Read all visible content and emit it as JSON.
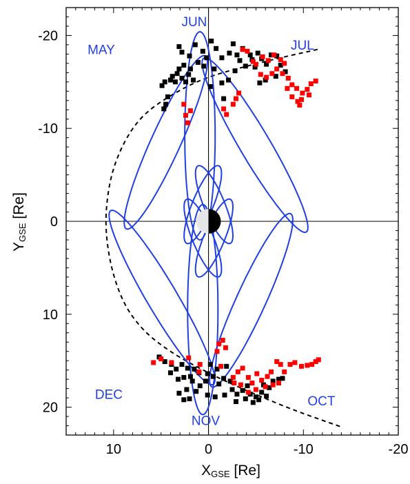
{
  "chart_data": {
    "type": "scatter",
    "title": "",
    "xlabel": {
      "main": "X",
      "sub": "GSE",
      "unit": " [Re]"
    },
    "ylabel": {
      "main": "Y",
      "sub": "GSE",
      "unit": " [Re]"
    },
    "xlim": [
      15,
      -20
    ],
    "ylim": [
      -23,
      23
    ],
    "x_reversed": true,
    "y_reversed": true,
    "x_ticks": [
      {
        "value": 10,
        "label": "10"
      },
      {
        "value": 0,
        "label": "0"
      },
      {
        "value": -10,
        "label": "-10"
      },
      {
        "value": -20,
        "label": "-20"
      }
    ],
    "y_ticks": [
      {
        "value": -20,
        "label": "-20"
      },
      {
        "value": -10,
        "label": "-10"
      },
      {
        "value": 0,
        "label": "0"
      },
      {
        "value": 10,
        "label": "10"
      },
      {
        "value": 20,
        "label": "20"
      }
    ],
    "grid": false,
    "zero_lines": true,
    "colors": {
      "black": "#000000",
      "red": "#ff0000",
      "orbit": "#1f3fe0",
      "earth_dark": "#000000",
      "earth_light": "#e6e6e6"
    },
    "magnetopause": {
      "style": "dashed",
      "points": [
        [
          -11.5,
          -18.5
        ],
        [
          -6,
          -17.2
        ],
        [
          0,
          -15.5
        ],
        [
          4,
          -13.5
        ],
        [
          7,
          -11.2
        ],
        [
          9,
          -8.2
        ],
        [
          10.3,
          -4.5
        ],
        [
          10.8,
          0
        ],
        [
          10.3,
          4.5
        ],
        [
          9,
          8.5
        ],
        [
          7,
          11.5
        ],
        [
          4,
          14
        ],
        [
          0,
          16.3
        ],
        [
          -4,
          18.2
        ],
        [
          -9,
          20.3
        ],
        [
          -14.2,
          22.2
        ]
      ]
    },
    "orbits": [
      {
        "center": [
          4.5,
          -8.5
        ],
        "semi_major": 10.2,
        "semi_minor": 1.55,
        "angle_deg": -66
      },
      {
        "center": [
          0.9,
          -9.2
        ],
        "semi_major": 11.2,
        "semi_minor": 1.6,
        "angle_deg": -90
      },
      {
        "center": [
          -4.9,
          -8.2
        ],
        "semi_major": 10.8,
        "semi_minor": 1.6,
        "angle_deg": -120
      },
      {
        "center": [
          4.9,
          8.2
        ],
        "semi_major": 10.8,
        "semi_minor": 1.6,
        "angle_deg": -120
      },
      {
        "center": [
          0.6,
          9.5
        ],
        "semi_major": 11.3,
        "semi_minor": 1.6,
        "angle_deg": -90
      },
      {
        "center": [
          -4.5,
          8.5
        ],
        "semi_major": 10.2,
        "semi_minor": 1.55,
        "angle_deg": -66
      },
      {
        "center": [
          -0.6,
          -1.8
        ],
        "semi_major": 4.5,
        "semi_minor": 1.1,
        "angle_deg": -112
      },
      {
        "center": [
          0.6,
          -1.8
        ],
        "semi_major": 4.5,
        "semi_minor": 1.1,
        "angle_deg": -68
      },
      {
        "center": [
          0.6,
          1.8
        ],
        "semi_major": 4.5,
        "semi_minor": 1.1,
        "angle_deg": -112
      },
      {
        "center": [
          -0.6,
          1.8
        ],
        "semi_major": 4.5,
        "semi_minor": 1.1,
        "angle_deg": -68
      }
    ],
    "annotations": [
      {
        "text": "JUN",
        "x": 1.5,
        "y": -21.5
      },
      {
        "text": "MAY",
        "x": 11.3,
        "y": -18.5
      },
      {
        "text": "JUL",
        "x": -9.9,
        "y": -19.0
      },
      {
        "text": "DEC",
        "x": 10.5,
        "y": 18.6
      },
      {
        "text": "NOV",
        "x": 0.3,
        "y": 21.4
      },
      {
        "text": "OCT",
        "x": -11.9,
        "y": 19.3
      }
    ],
    "series": [
      {
        "color": "black",
        "points": [
          [
            4.7,
            -12.1
          ],
          [
            4.5,
            -12.6
          ],
          [
            4.3,
            -13.4
          ],
          [
            4.9,
            -14.6
          ],
          [
            4.6,
            -15.0
          ],
          [
            4.0,
            -15.2
          ],
          [
            3.5,
            -15.0
          ],
          [
            3.8,
            -15.6
          ],
          [
            3.3,
            -15.9
          ],
          [
            2.8,
            -15.4
          ],
          [
            2.4,
            -15.0
          ],
          [
            2.1,
            -15.8
          ],
          [
            1.6,
            -15.2
          ],
          [
            1.9,
            -16.4
          ],
          [
            2.6,
            -16.8
          ],
          [
            3.1,
            -16.4
          ],
          [
            2.0,
            -17.8
          ],
          [
            2.8,
            -18.2
          ],
          [
            3.1,
            -18.8
          ],
          [
            1.4,
            -19.0
          ],
          [
            0.6,
            -18.3
          ],
          [
            0.2,
            -17.6
          ],
          [
            0.5,
            -16.7
          ],
          [
            -0.6,
            -16.4
          ],
          [
            -1.4,
            -17.6
          ],
          [
            -2.2,
            -18.1
          ],
          [
            -3.0,
            -17.9
          ],
          [
            -3.3,
            -17.3
          ],
          [
            -2.8,
            -16.2
          ],
          [
            -2.1,
            -15.2
          ],
          [
            -1.4,
            -14.9
          ],
          [
            -0.2,
            -14.5
          ],
          [
            -3.9,
            -16.7
          ],
          [
            -4.4,
            -17.9
          ],
          [
            -5.2,
            -18.1
          ],
          [
            -5.6,
            -17.5
          ],
          [
            -4.9,
            -16.6
          ],
          [
            -6.1,
            -16.9
          ],
          [
            -6.6,
            -17.9
          ],
          [
            -7.2,
            -17.8
          ],
          [
            -7.6,
            -16.8
          ],
          [
            -8.1,
            -16.1
          ],
          [
            -7.1,
            -15.6
          ],
          [
            -6.0,
            -15.2
          ],
          [
            -5.4,
            -14.9
          ],
          [
            -1.6,
            -13.2
          ],
          [
            -0.8,
            -18.6
          ],
          [
            -2.6,
            -19.1
          ],
          [
            -3.6,
            -18.6
          ],
          [
            -0.3,
            -19.4
          ],
          [
            1.1,
            -17.1
          ],
          [
            -4.6,
            -17.4
          ],
          [
            5.2,
            14.6
          ],
          [
            4.6,
            15.1
          ],
          [
            3.9,
            15.4
          ],
          [
            3.4,
            15.9
          ],
          [
            2.8,
            15.4
          ],
          [
            2.2,
            15.8
          ],
          [
            1.5,
            15.9
          ],
          [
            1.0,
            16.3
          ],
          [
            1.9,
            16.7
          ],
          [
            2.6,
            16.8
          ],
          [
            1.7,
            17.2
          ],
          [
            0.9,
            17.7
          ],
          [
            0.3,
            17.2
          ],
          [
            0.1,
            16.4
          ],
          [
            -0.5,
            16.7
          ],
          [
            -1.1,
            17.5
          ],
          [
            -1.6,
            16.9
          ],
          [
            -2.3,
            17.2
          ],
          [
            -2.5,
            18.1
          ],
          [
            -3.0,
            18.6
          ],
          [
            -3.6,
            18.2
          ],
          [
            -4.1,
            17.7
          ],
          [
            -4.4,
            18.6
          ],
          [
            -5.0,
            18.9
          ],
          [
            -5.6,
            18.4
          ],
          [
            -5.8,
            17.6
          ],
          [
            -6.4,
            17.9
          ],
          [
            -6.8,
            17.2
          ],
          [
            -7.4,
            17.0
          ],
          [
            -7.8,
            16.9
          ],
          [
            -0.7,
            18.9
          ],
          [
            0.1,
            18.7
          ],
          [
            1.3,
            18.3
          ],
          [
            2.0,
            19.1
          ],
          [
            2.6,
            19.2
          ],
          [
            3.1,
            18.5
          ],
          [
            -1.7,
            18.7
          ],
          [
            -2.9,
            19.4
          ],
          [
            -3.9,
            19.1
          ],
          [
            -4.7,
            19.5
          ],
          [
            -5.3,
            19.2
          ],
          [
            -6.1,
            18.8
          ],
          [
            4.0,
            16.3
          ],
          [
            3.2,
            17.0
          ],
          [
            2.3,
            18.1
          ],
          [
            -0.2,
            15.4
          ],
          [
            -0.9,
            15.9
          ],
          [
            -1.9,
            15.6
          ]
        ]
      },
      {
        "color": "red",
        "points": [
          [
            2.2,
            -10.6
          ],
          [
            2.4,
            -11.4
          ],
          [
            2.6,
            -12.6
          ],
          [
            1.9,
            -11.9
          ],
          [
            -1.6,
            -12.1
          ],
          [
            -1.9,
            -11.5
          ],
          [
            -2.6,
            -12.6
          ],
          [
            -2.9,
            -13.2
          ],
          [
            -3.2,
            -13.8
          ],
          [
            -3.6,
            -18.5
          ],
          [
            -4.1,
            -18.3
          ],
          [
            -4.7,
            -17.2
          ],
          [
            -5.0,
            -16.9
          ],
          [
            -5.5,
            -15.8
          ],
          [
            -6.1,
            -15.5
          ],
          [
            -6.7,
            -15.9
          ],
          [
            -7.2,
            -16.4
          ],
          [
            -7.8,
            -15.9
          ],
          [
            -8.4,
            -15.4
          ],
          [
            -8.8,
            -14.7
          ],
          [
            -9.3,
            -14.3
          ],
          [
            -9.9,
            -13.8
          ],
          [
            -10.4,
            -14.2
          ],
          [
            -10.8,
            -14.8
          ],
          [
            -11.3,
            -15.1
          ],
          [
            -10.6,
            -13.6
          ],
          [
            -9.8,
            -13.1
          ],
          [
            -8.8,
            -13.4
          ],
          [
            -8.3,
            -14.3
          ],
          [
            -9.4,
            -12.9
          ],
          [
            -9.6,
            -12.5
          ],
          [
            -6.3,
            -17.3
          ],
          [
            -6.9,
            -17.9
          ],
          [
            -5.7,
            -17.7
          ],
          [
            -7.6,
            -17.4
          ],
          [
            -8.0,
            -17.0
          ],
          [
            5.8,
            15.2
          ],
          [
            5.0,
            14.8
          ],
          [
            3.9,
            15.2
          ],
          [
            2.1,
            14.7
          ],
          [
            0.9,
            15.4
          ],
          [
            1.0,
            16.2
          ],
          [
            -0.9,
            14.0
          ],
          [
            -1.1,
            13.2
          ],
          [
            -1.5,
            12.8
          ],
          [
            -1.8,
            13.6
          ],
          [
            -1.3,
            15.6
          ],
          [
            -2.6,
            16.8
          ],
          [
            -3.1,
            16.2
          ],
          [
            -3.6,
            15.8
          ],
          [
            -4.2,
            16.8
          ],
          [
            -4.6,
            17.4
          ],
          [
            -5.1,
            16.4
          ],
          [
            -5.6,
            17.1
          ],
          [
            -6.2,
            16.7
          ],
          [
            -6.8,
            17.6
          ],
          [
            -7.4,
            17.4
          ],
          [
            -8.0,
            16.2
          ],
          [
            -8.6,
            15.4
          ],
          [
            -9.1,
            15.2
          ],
          [
            -9.8,
            15.6
          ],
          [
            -10.4,
            15.5
          ],
          [
            -10.9,
            15.4
          ],
          [
            -11.3,
            15.1
          ],
          [
            -11.6,
            14.9
          ],
          [
            -7.2,
            15.1
          ],
          [
            -6.0,
            17.8
          ],
          [
            -5.0,
            18.1
          ],
          [
            -4.2,
            18.4
          ],
          [
            -3.4,
            17.6
          ],
          [
            -2.7,
            17.4
          ],
          [
            -6.6,
            16.2
          ],
          [
            -7.6,
            15.4
          ]
        ]
      }
    ]
  }
}
